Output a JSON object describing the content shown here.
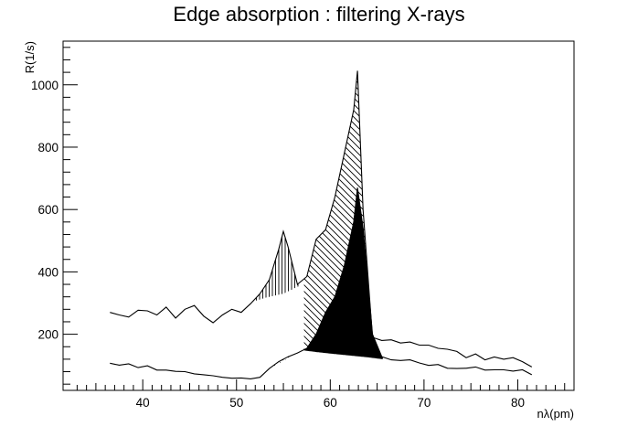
{
  "chart_data": {
    "type": "line",
    "title": "Edge absorption : filtering X-rays",
    "xlabel": "nλ(pm)",
    "ylabel": "R(1/s)",
    "xlim": [
      31.5,
      86.0
    ],
    "ylim": [
      20,
      1140
    ],
    "xticks": [
      "40",
      "50",
      "60",
      "70",
      "80"
    ],
    "yticks": [
      "200",
      "400",
      "600",
      "800",
      "1000"
    ],
    "grid": false,
    "colors": {
      "line": "#000000",
      "background": "#ffffff"
    },
    "series": [
      {
        "name": "",
        "style": "unfiltered",
        "x": [
          36.5,
          37.5,
          38.5,
          39.5,
          40.5,
          41.5,
          42.5,
          43.5,
          44.5,
          45.5,
          46.5,
          47.5,
          48.5,
          49.5,
          50.5,
          51.5,
          52.5,
          53.5,
          54.5,
          55.0,
          55.5,
          56.5,
          57.5,
          58.5,
          59.5,
          60.5,
          61.5,
          62.5,
          62.9,
          63.5,
          64.5,
          65.5,
          66.5,
          67.5,
          68.5,
          69.5,
          70.5,
          71.5,
          72.5,
          73.5,
          74.5,
          75.5,
          76.5,
          77.5,
          78.5,
          79.5,
          80.5,
          81.5
        ],
        "y": [
          270,
          262,
          255,
          277,
          275,
          262,
          287,
          252,
          280,
          292,
          258,
          237,
          262,
          280,
          270,
          298,
          330,
          375,
          472,
          530,
          480,
          360,
          385,
          505,
          535,
          640,
          780,
          920,
          1045,
          600,
          190,
          180,
          182,
          172,
          175,
          165,
          165,
          155,
          152,
          145,
          125,
          137,
          118,
          127,
          120,
          125,
          112,
          95
        ]
      },
      {
        "name": "",
        "style": "filtered",
        "x": [
          36.5,
          37.5,
          38.5,
          39.5,
          40.5,
          41.5,
          42.5,
          43.5,
          44.5,
          45.5,
          46.5,
          47.5,
          48.5,
          49.5,
          50.5,
          51.5,
          52.5,
          53.5,
          54.5,
          55.5,
          56.5,
          57.5,
          58.5,
          59.5,
          60.5,
          61.5,
          62.5,
          62.9,
          63.5,
          64.5,
          65.5,
          66.5,
          67.5,
          68.5,
          69.5,
          70.5,
          71.5,
          72.5,
          73.5,
          74.5,
          75.5,
          76.5,
          77.5,
          78.5,
          79.5,
          80.5,
          81.5
        ],
        "y": [
          107,
          101,
          105,
          93,
          99,
          85,
          85,
          81,
          80,
          73,
          70,
          67,
          62,
          59,
          60,
          57,
          62,
          90,
          112,
          128,
          140,
          155,
          200,
          270,
          320,
          420,
          560,
          670,
          540,
          200,
          128,
          118,
          116,
          118,
          108,
          100,
          103,
          91,
          90,
          91,
          95,
          85,
          86,
          86,
          82,
          86,
          70
        ]
      }
    ]
  }
}
